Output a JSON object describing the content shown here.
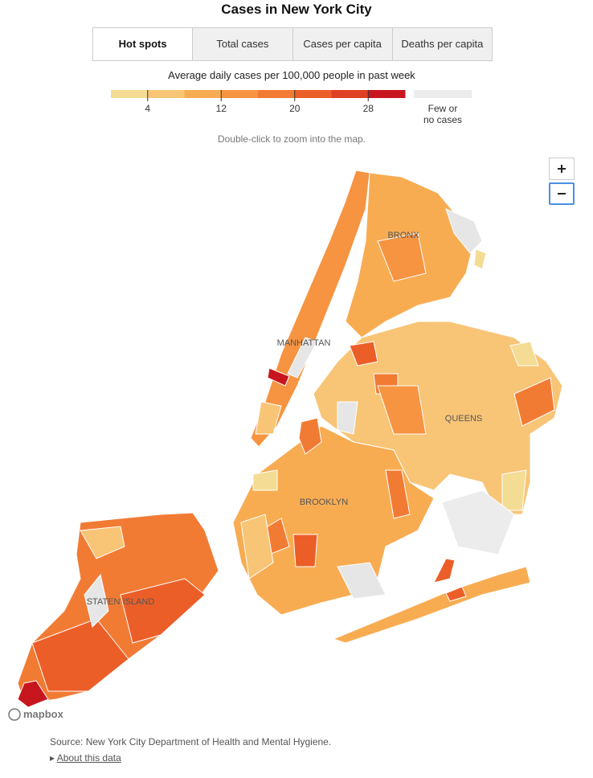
{
  "header": {
    "title": "Cases in New York City"
  },
  "tabs": [
    "Hot spots",
    "Total cases",
    "Cases per capita",
    "Deaths per capita"
  ],
  "legend": {
    "title": "Average daily cases per 100,000 people in past week",
    "lim": [
      0,
      32
    ],
    "ticks": [
      4,
      12,
      20,
      28
    ],
    "colors": [
      "#f5dc94",
      "#f8c576",
      "#f8ac52",
      "#f69442",
      "#f27b34",
      "#ec5e28",
      "#df4024",
      "#c8161f"
    ],
    "no_data_label": "Few or no cases",
    "no_data_color": "#ececec"
  },
  "note": "Double-click to zoom into the map.",
  "map": {
    "labels": [
      "BRONX",
      "MANHATTAN",
      "QUEENS",
      "BROOKLYN",
      "STATEN ISLAND"
    ],
    "attribution": "mapbox"
  },
  "footer": {
    "source": "Source: New York City Department of Health and Mental Hygiene.",
    "link": "About this data"
  }
}
